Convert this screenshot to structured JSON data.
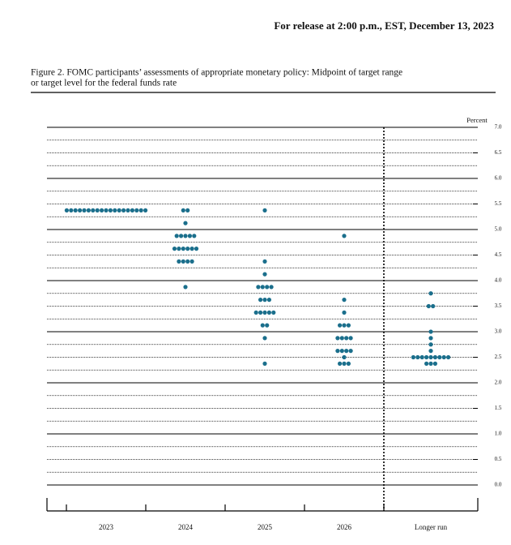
{
  "header": {
    "release": "For release at 2:00 p.m., EST, December 13, 2023"
  },
  "chart_data": {
    "type": "dot",
    "title": [
      "Figure 2.  FOMC participants’ assessments of appropriate monetary policy:  Midpoint of target range",
      "or target level for the federal funds rate"
    ],
    "y_label": "Percent",
    "categories": [
      "2023",
      "2024",
      "2025",
      "2026",
      "Longer run"
    ],
    "color": "#1b6f8c",
    "values": [
      [
        5.375,
        5.375,
        5.375,
        5.375,
        5.375,
        5.375,
        5.375,
        5.375,
        5.375,
        5.375,
        5.375,
        5.375,
        5.375,
        5.375,
        5.375,
        5.375,
        5.375,
        5.375,
        5.375
      ],
      [
        5.375,
        5.375,
        5.125,
        4.875,
        4.875,
        4.875,
        4.875,
        4.875,
        4.625,
        4.625,
        4.625,
        4.625,
        4.625,
        4.625,
        4.375,
        4.375,
        4.375,
        4.375,
        3.875
      ],
      [
        5.375,
        4.375,
        4.125,
        3.875,
        3.875,
        3.875,
        3.875,
        3.625,
        3.625,
        3.625,
        3.375,
        3.375,
        3.375,
        3.375,
        3.375,
        3.125,
        3.125,
        2.875,
        2.375
      ],
      [
        4.875,
        3.625,
        3.375,
        3.125,
        3.125,
        3.125,
        2.875,
        2.875,
        2.875,
        2.875,
        2.625,
        2.625,
        2.625,
        2.625,
        2.5,
        2.375,
        2.375,
        2.375
      ],
      [
        3.75,
        3.5,
        3.5,
        3.0,
        2.875,
        2.75,
        2.625,
        2.5,
        2.5,
        2.5,
        2.5,
        2.5,
        2.5,
        2.5,
        2.5,
        2.5,
        2.375,
        2.375,
        2.375
      ]
    ],
    "ylim": [
      0,
      7
    ],
    "yticks": [
      {
        "value": 0,
        "label": "0.0"
      },
      0.5,
      {
        "value": 1,
        "label": "1.0"
      },
      1.5,
      {
        "value": 2,
        "label": "2.0"
      },
      2.5,
      {
        "value": 3,
        "label": "3.0"
      },
      3.5,
      {
        "value": 4,
        "label": "4.0"
      },
      4.5,
      {
        "value": 5,
        "label": "5.0"
      },
      5.5,
      {
        "value": 6,
        "label": "6.0"
      },
      6.5,
      {
        "value": 7,
        "label": "7.0"
      }
    ],
    "grid_step": 0.25
  }
}
